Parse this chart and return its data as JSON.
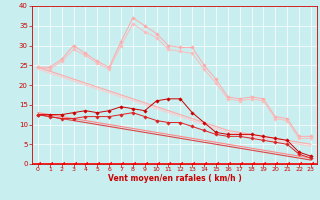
{
  "x": [
    0,
    1,
    2,
    3,
    4,
    5,
    6,
    7,
    8,
    9,
    10,
    11,
    12,
    13,
    14,
    15,
    16,
    17,
    18,
    19,
    20,
    21,
    22,
    23
  ],
  "series": [
    {
      "name": "light_pink_jagged1",
      "color": "#ffaaaa",
      "linewidth": 0.7,
      "marker": "D",
      "markersize": 1.8,
      "y": [
        24.5,
        24.5,
        26.5,
        30.0,
        28.0,
        26.0,
        24.5,
        31.0,
        37.0,
        35.0,
        33.0,
        30.0,
        29.5,
        29.5,
        25.0,
        21.5,
        17.0,
        16.5,
        17.0,
        16.5,
        12.0,
        11.5,
        7.0,
        7.0
      ]
    },
    {
      "name": "light_pink_jagged2",
      "color": "#ffbbbb",
      "linewidth": 0.7,
      "marker": "D",
      "markersize": 1.8,
      "y": [
        24.5,
        24.0,
        26.0,
        29.0,
        27.5,
        25.5,
        24.0,
        30.0,
        35.5,
        33.5,
        32.0,
        29.0,
        28.5,
        28.0,
        24.0,
        20.5,
        16.5,
        16.0,
        16.5,
        16.0,
        11.5,
        11.0,
        6.5,
        6.5
      ]
    },
    {
      "name": "straight_line1",
      "color": "#ffaaaa",
      "linewidth": 0.8,
      "marker": null,
      "y": [
        24.5,
        23.5,
        22.5,
        21.5,
        20.5,
        19.5,
        18.5,
        17.5,
        16.5,
        15.5,
        14.5,
        13.5,
        12.5,
        11.5,
        10.5,
        9.5,
        8.5,
        8.0,
        7.5,
        7.0,
        6.5,
        6.0,
        5.5,
        5.0
      ]
    },
    {
      "name": "straight_line2",
      "color": "#ffcccc",
      "linewidth": 0.8,
      "marker": null,
      "y": [
        24.0,
        23.0,
        22.0,
        21.0,
        20.0,
        19.0,
        18.0,
        17.0,
        16.0,
        15.0,
        14.0,
        13.0,
        12.0,
        11.0,
        10.0,
        9.0,
        8.0,
        7.5,
        7.0,
        6.5,
        6.0,
        5.5,
        5.0,
        4.5
      ]
    },
    {
      "name": "straight_line3",
      "color": "#ff8888",
      "linewidth": 0.8,
      "marker": null,
      "y": [
        13.0,
        12.5,
        12.0,
        11.5,
        11.0,
        10.5,
        10.0,
        9.5,
        9.0,
        8.5,
        8.0,
        7.5,
        7.0,
        6.5,
        6.0,
        5.5,
        5.0,
        4.5,
        4.0,
        3.5,
        3.0,
        2.5,
        2.0,
        1.5
      ]
    },
    {
      "name": "straight_line4",
      "color": "#dd4444",
      "linewidth": 0.8,
      "marker": null,
      "y": [
        12.5,
        12.0,
        11.5,
        11.0,
        10.5,
        10.0,
        9.5,
        9.0,
        8.5,
        8.0,
        7.5,
        7.0,
        6.5,
        6.0,
        5.5,
        5.0,
        4.5,
        4.0,
        3.5,
        3.0,
        2.5,
        2.0,
        1.5,
        1.0
      ]
    },
    {
      "name": "red_jagged1",
      "color": "#cc0000",
      "linewidth": 0.7,
      "marker": "D",
      "markersize": 1.8,
      "y": [
        12.5,
        12.5,
        12.5,
        13.0,
        13.5,
        13.0,
        13.5,
        14.5,
        14.0,
        13.5,
        16.0,
        16.5,
        16.5,
        13.0,
        10.5,
        8.0,
        7.5,
        7.5,
        7.5,
        7.0,
        6.5,
        6.0,
        3.0,
        2.0
      ]
    },
    {
      "name": "red_jagged2",
      "color": "#dd2222",
      "linewidth": 0.7,
      "marker": "D",
      "markersize": 1.8,
      "y": [
        12.5,
        12.0,
        11.5,
        11.5,
        12.0,
        12.0,
        12.0,
        12.5,
        13.0,
        12.0,
        11.0,
        10.5,
        10.5,
        9.5,
        8.5,
        7.5,
        7.0,
        7.0,
        6.5,
        6.0,
        5.5,
        5.0,
        2.5,
        1.5
      ]
    },
    {
      "name": "bottom_arrows",
      "color": "#ff0000",
      "linewidth": 0.8,
      "marker": 4,
      "markersize": 2.5,
      "y": [
        0,
        0,
        0,
        0,
        0,
        0,
        0,
        0,
        0,
        0,
        0,
        0,
        0,
        0,
        0,
        0,
        0,
        0,
        0,
        0,
        0,
        0,
        0,
        0
      ]
    }
  ],
  "xlabel": "Vent moyen/en rafales ( km/h )",
  "xlim": [
    -0.5,
    23.5
  ],
  "ylim": [
    0,
    40
  ],
  "yticks": [
    0,
    5,
    10,
    15,
    20,
    25,
    30,
    35,
    40
  ],
  "xticks": [
    0,
    1,
    2,
    3,
    4,
    5,
    6,
    7,
    8,
    9,
    10,
    11,
    12,
    13,
    14,
    15,
    16,
    17,
    18,
    19,
    20,
    21,
    22,
    23
  ],
  "bg_color": "#c8eef0",
  "grid_color": "#ffffff",
  "tick_color": "#cc0000",
  "label_color": "#cc0000"
}
